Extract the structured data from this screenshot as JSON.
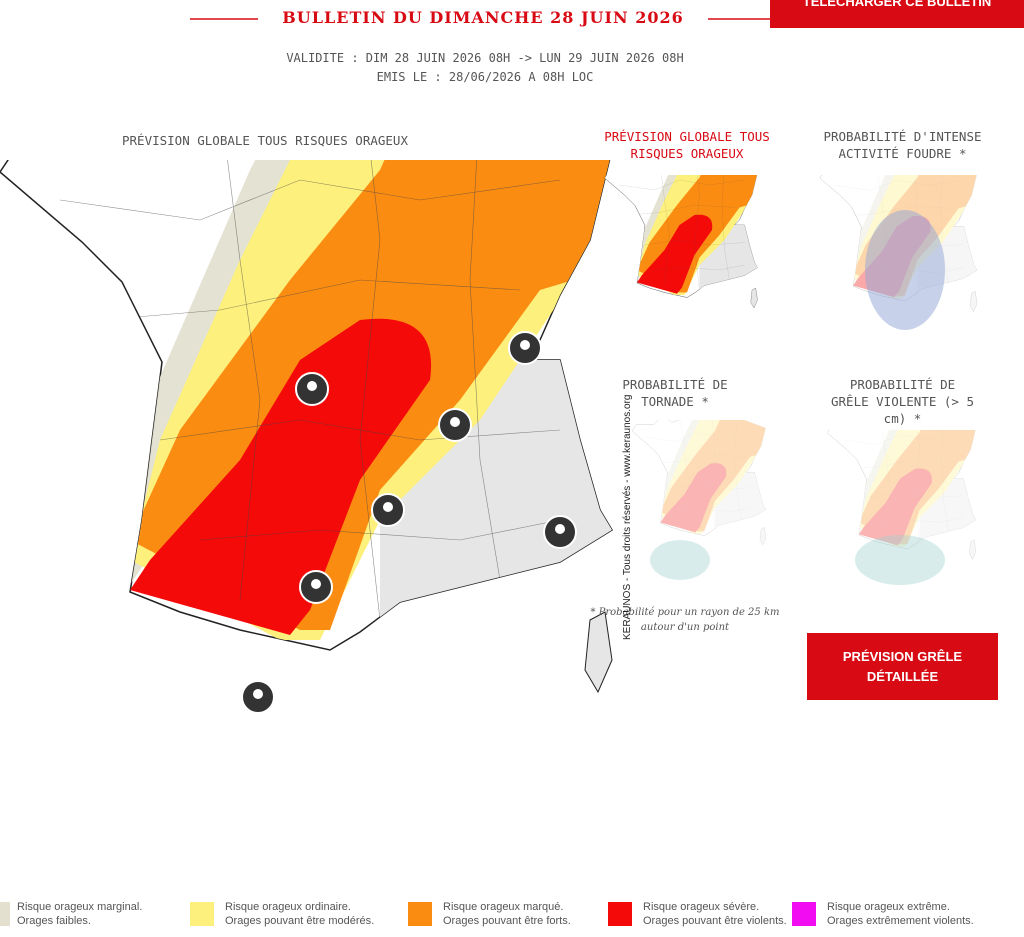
{
  "header": {
    "title": "BULLETIN DU DIMANCHE 28 JUIN 2026",
    "button": "TÉLÉCHARGER CE BULLETIN",
    "validity": "VALIDITE : DIM 28 JUIN 2026 08H -> LUN 29 JUIN 2026 08H",
    "issued": "EMIS LE : 28/06/2026 A 08H LOC"
  },
  "main_map": {
    "title": "PRÉVISION GLOBALE TOUS RISQUES ORAGEUX"
  },
  "thumbnails": [
    {
      "title": "PRÉVISION GLOBALE TOUS RISQUES ORAGEUX"
    },
    {
      "title": "PROBABILITÉ D'INTENSE ACTIVITÉ FOUDRE *"
    },
    {
      "title": "PROBABILITÉ DE TORNADE *"
    },
    {
      "title": "PROBABILITÉ DE GRÊLE VIOLENTE (> 5 cm) *"
    }
  ],
  "footnote": "* Probabilité pour un rayon de 25 km autour d'un point",
  "watermark": "KERAUNOS - Tous droits réservés - www.keraunos.org",
  "hail_button": "PRÉVISION GRÊLE DÉTAILLÉE",
  "legend": [
    {
      "color": "#e3e0d0",
      "line1": "Risque orageux marginal.",
      "line2": "Orages faibles."
    },
    {
      "color": "#fdf07c",
      "line1": "Risque orageux ordinaire.",
      "line2": "Orages pouvant être modérés."
    },
    {
      "color": "#fb8c12",
      "line1": "Risque orageux marqué.",
      "line2": "Orages pouvant être forts."
    },
    {
      "color": "#f50a0a",
      "line1": "Risque orageux sévère.",
      "line2": "Orages pouvant être violents."
    },
    {
      "color": "#f20cf2",
      "line1": "Risque orageux extrême.",
      "line2": "Orages extrêmement violents."
    }
  ]
}
